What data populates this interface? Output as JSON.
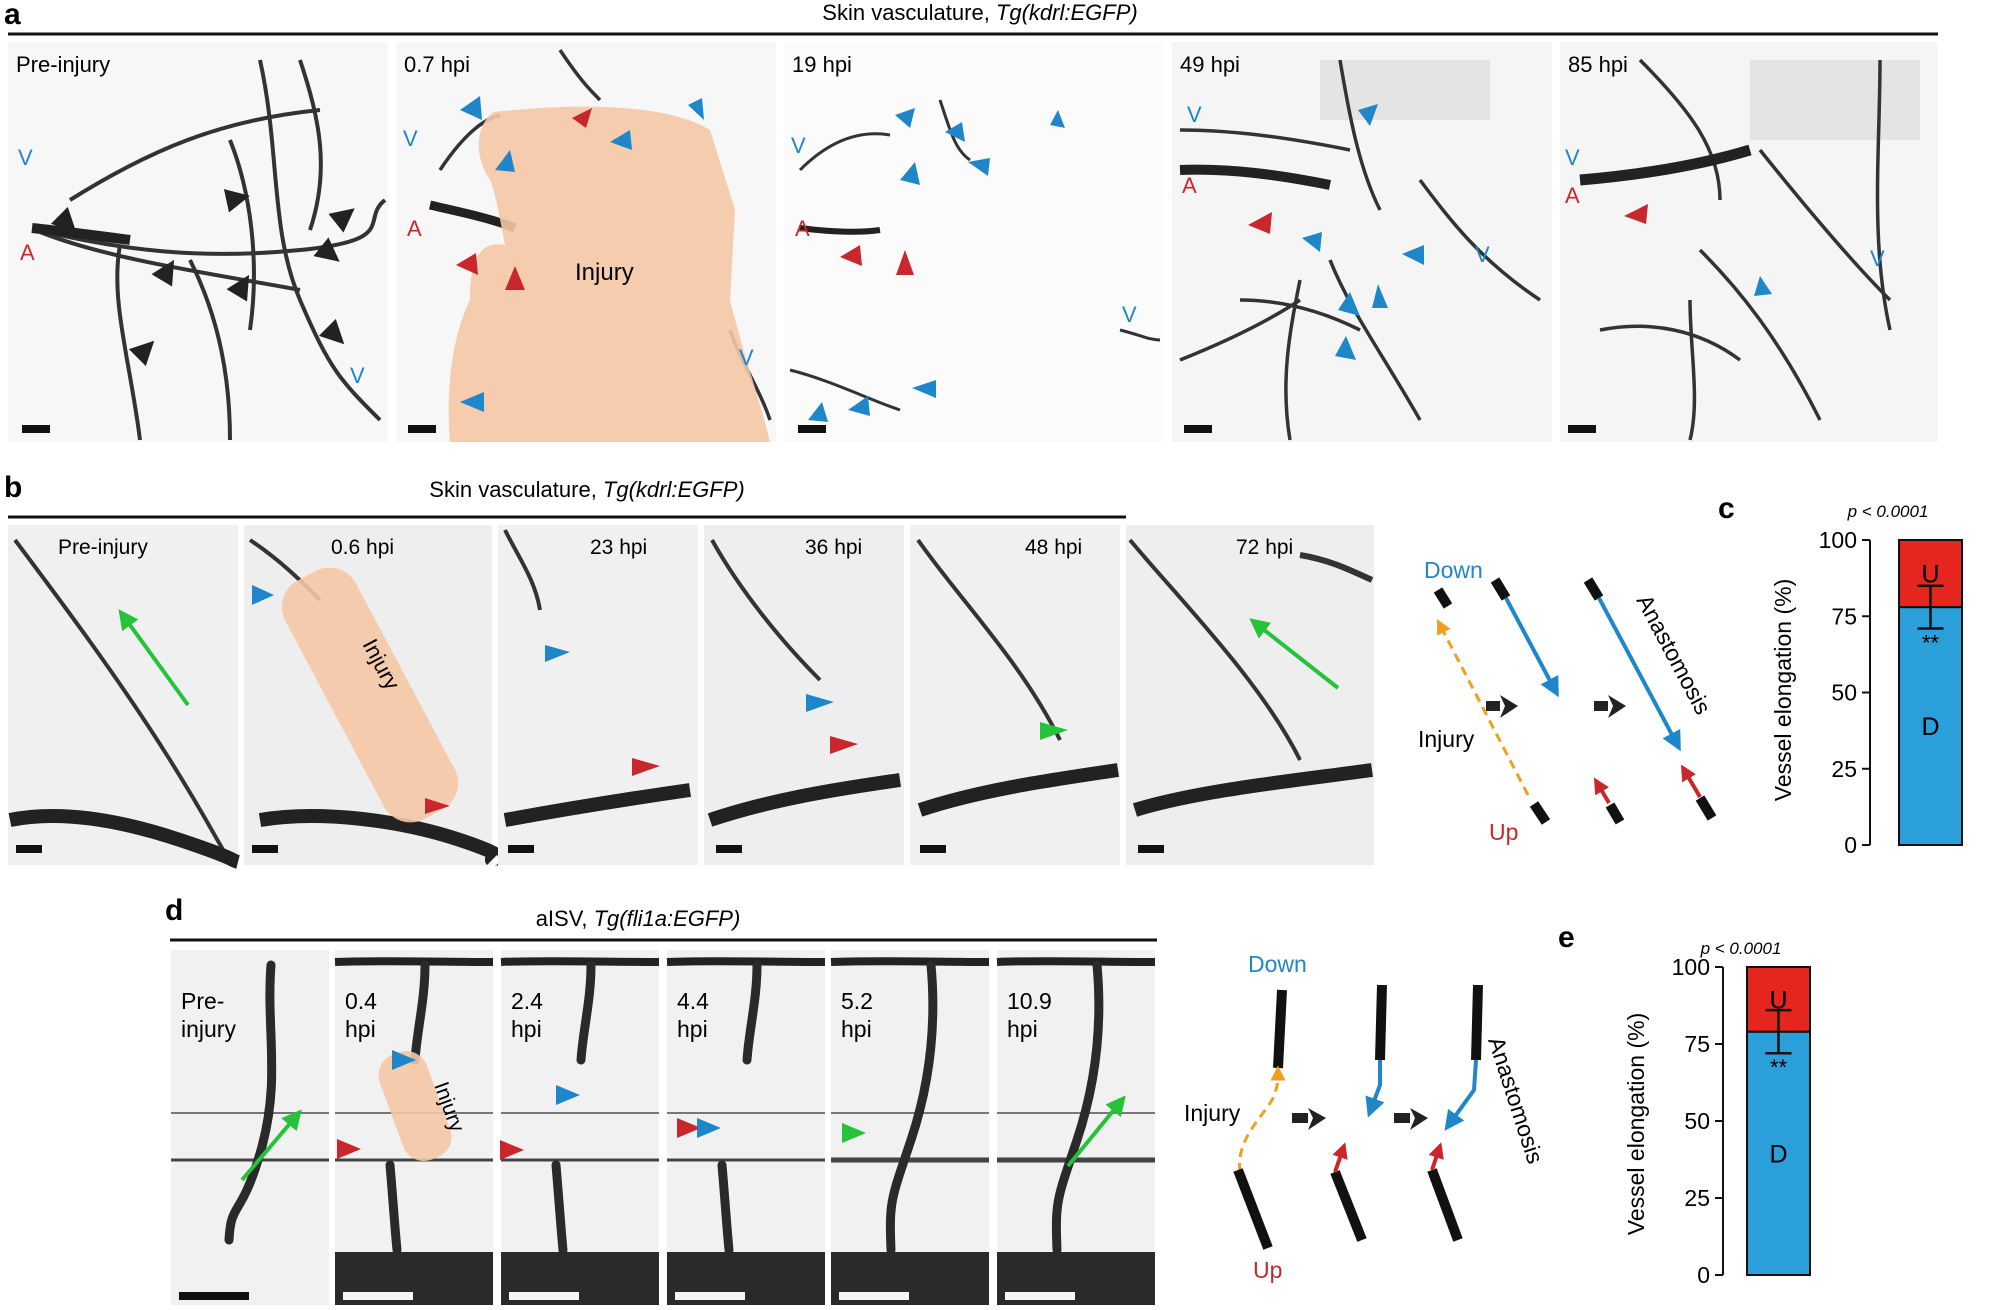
{
  "colors": {
    "blue": "#1f86c9",
    "red": "#c8282b",
    "green": "#25c23a",
    "orange": "#f0a020",
    "injury": "#f4c7a5",
    "bar_d": "#2b9fd9",
    "bar_u": "#e4261f",
    "vessel": "#222222"
  },
  "panel_a": {
    "letter": "a",
    "title_plain": "Skin vasculature, ",
    "title_italic": "Tg(kdrl:EGFP)",
    "frames": [
      "Pre-injury",
      "0.7 hpi",
      "19 hpi",
      "49 hpi",
      "85 hpi"
    ],
    "injury_label": "Injury",
    "artery_label": "A",
    "vein_label": "V"
  },
  "panel_b": {
    "letter": "b",
    "title_plain": "Skin vasculature, ",
    "title_italic": "Tg(kdrl:EGFP)",
    "frames": [
      "Pre-injury",
      "0.6 hpi",
      "23 hpi",
      "36 hpi",
      "48 hpi",
      "72 hpi"
    ],
    "injury_label": "Injury",
    "schematic": {
      "down": "Down",
      "up": "Up",
      "injury": "Injury",
      "anastomosis": "Anastomosis"
    }
  },
  "panel_c": {
    "letter": "c",
    "p_value": "p < 0.0001",
    "significance": "**"
  },
  "panel_d": {
    "letter": "d",
    "title_plain": "aISV, ",
    "title_italic": "Tg(fli1a:EGFP)",
    "frames": [
      [
        "Pre-",
        "injury"
      ],
      [
        "0.4",
        "hpi"
      ],
      [
        "2.4",
        "hpi"
      ],
      [
        "4.4",
        "hpi"
      ],
      [
        "5.2",
        "hpi"
      ],
      [
        "10.9",
        "hpi"
      ]
    ],
    "injury_label": "Injury",
    "schematic": {
      "down": "Down",
      "up": "Up",
      "injury": "Injury",
      "anastomosis": "Anastomosis"
    }
  },
  "panel_e": {
    "letter": "e",
    "p_value": "p < 0.0001",
    "significance": "**"
  },
  "chart_data": [
    {
      "type": "bar",
      "panel": "c",
      "stacked": true,
      "ylabel": "Vessel elongation (%)",
      "ylim": [
        0,
        100
      ],
      "yticks": [
        0,
        25,
        50,
        75,
        100
      ],
      "series": [
        {
          "name": "D",
          "values": [
            78
          ],
          "color": "#2b9fd9",
          "error": 7
        },
        {
          "name": "U",
          "values": [
            22
          ],
          "color": "#e4261f"
        }
      ]
    },
    {
      "type": "bar",
      "panel": "e",
      "stacked": true,
      "ylabel": "Vessel elongation (%)",
      "ylim": [
        0,
        100
      ],
      "yticks": [
        0,
        25,
        50,
        75,
        100
      ],
      "series": [
        {
          "name": "D",
          "values": [
            79
          ],
          "color": "#2b9fd9",
          "error": 7
        },
        {
          "name": "U",
          "values": [
            21
          ],
          "color": "#e4261f"
        }
      ]
    }
  ]
}
